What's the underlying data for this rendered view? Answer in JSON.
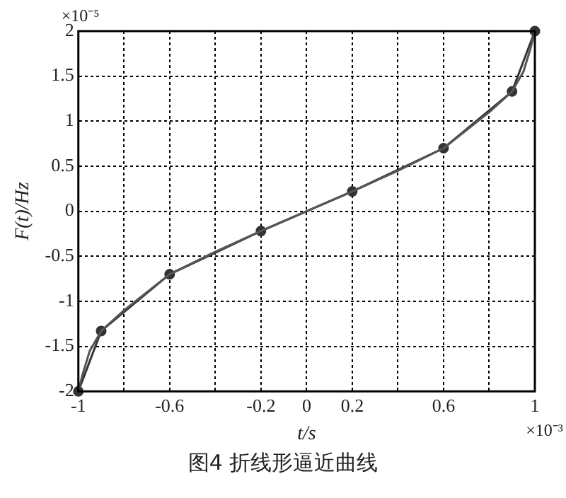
{
  "chart_data": {
    "type": "line",
    "title": "图4 折线形逼近曲线",
    "xlabel": "t/s",
    "ylabel": "F(t)/Hz",
    "annotations": [
      "×10⁻⁵",
      "×10⁻³"
    ],
    "xlim": [
      -1,
      1
    ],
    "xticks": [
      -1,
      {
        "value": -0.8,
        "label": null
      },
      -0.6,
      {
        "value": -0.4,
        "label": null
      },
      -0.2,
      0,
      0.2,
      {
        "value": 0.4,
        "label": null
      },
      0.6,
      {
        "value": 0.8,
        "label": null
      },
      1
    ],
    "ylim": [
      -2,
      2
    ],
    "yticks": [
      -2,
      -1.5,
      -1,
      -0.5,
      0,
      0.5,
      1,
      1.5,
      2
    ],
    "grid": true,
    "line_style": "solid",
    "series": [
      {
        "color": "#555555",
        "marker": "none",
        "x": [
          -1,
          -0.98,
          -0.95,
          -0.9,
          -0.8,
          -0.7,
          -0.6,
          -0.4,
          -0.2,
          0,
          0.2,
          0.4,
          0.6,
          0.7,
          0.8,
          0.9,
          0.95,
          0.98,
          1
        ],
        "values": [
          -2,
          -1.8,
          -1.55,
          -1.33,
          -1.1,
          -0.9,
          -0.7,
          -0.45,
          -0.22,
          0,
          0.22,
          0.45,
          0.7,
          0.9,
          1.1,
          1.33,
          1.55,
          1.8,
          2
        ]
      },
      {
        "color": "#333333",
        "marker": "circle",
        "x": [
          -1,
          -0.9,
          -0.6,
          -0.2,
          0.2,
          0.6,
          0.9,
          1
        ],
        "values": [
          -2,
          -1.33,
          -0.7,
          -0.22,
          0.22,
          0.7,
          1.33,
          2
        ]
      }
    ]
  }
}
